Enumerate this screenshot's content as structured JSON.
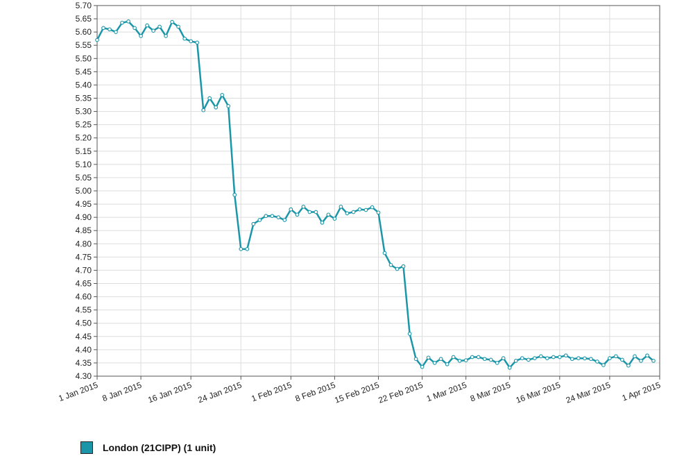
{
  "chart_data": {
    "type": "line",
    "title": "",
    "xlabel": "",
    "ylabel": "",
    "ylim": [
      4.3,
      5.7
    ],
    "xlim": [
      "2015-01-01",
      "2015-04-01"
    ],
    "yticks": [
      "4.30",
      "4.35",
      "4.40",
      "4.45",
      "4.50",
      "4.55",
      "4.60",
      "4.65",
      "4.70",
      "4.75",
      "4.80",
      "4.85",
      "4.90",
      "4.95",
      "5.00",
      "5.05",
      "5.10",
      "5.15",
      "5.20",
      "5.25",
      "5.30",
      "5.35",
      "5.40",
      "5.45",
      "5.50",
      "5.55",
      "5.60",
      "5.65",
      "5.70"
    ],
    "xticks": [
      {
        "date": "2015-01-01",
        "label": "1 Jan 2015"
      },
      {
        "date": "2015-01-08",
        "label": "8 Jan 2015"
      },
      {
        "date": "2015-01-16",
        "label": "16 Jan 2015"
      },
      {
        "date": "2015-01-24",
        "label": "24 Jan 2015"
      },
      {
        "date": "2015-02-01",
        "label": "1 Feb 2015"
      },
      {
        "date": "2015-02-08",
        "label": "8 Feb 2015"
      },
      {
        "date": "2015-02-15",
        "label": "15 Feb 2015"
      },
      {
        "date": "2015-02-22",
        "label": "22 Feb 2015"
      },
      {
        "date": "2015-03-01",
        "label": "1 Mar 2015"
      },
      {
        "date": "2015-03-08",
        "label": "8 Mar 2015"
      },
      {
        "date": "2015-03-16",
        "label": "16 Mar 2015"
      },
      {
        "date": "2015-03-24",
        "label": "24 Mar 2015"
      },
      {
        "date": "2015-04-01",
        "label": "1 Apr 2015"
      }
    ],
    "grid": true,
    "legend_position": "bottom-left",
    "series": [
      {
        "name": "London (21CIPP) (1 unit)",
        "color": "#1a96a8",
        "points": [
          [
            "2015-01-01",
            5.57
          ],
          [
            "2015-01-02",
            5.615
          ],
          [
            "2015-01-03",
            5.61
          ],
          [
            "2015-01-04",
            5.6
          ],
          [
            "2015-01-05",
            5.635
          ],
          [
            "2015-01-06",
            5.64
          ],
          [
            "2015-01-07",
            5.615
          ],
          [
            "2015-01-08",
            5.585
          ],
          [
            "2015-01-09",
            5.625
          ],
          [
            "2015-01-10",
            5.605
          ],
          [
            "2015-01-11",
            5.62
          ],
          [
            "2015-01-12",
            5.585
          ],
          [
            "2015-01-13",
            5.638
          ],
          [
            "2015-01-14",
            5.62
          ],
          [
            "2015-01-15",
            5.575
          ],
          [
            "2015-01-16",
            5.565
          ],
          [
            "2015-01-17",
            5.56
          ],
          [
            "2015-01-18",
            5.305
          ],
          [
            "2015-01-19",
            5.35
          ],
          [
            "2015-01-20",
            5.315
          ],
          [
            "2015-01-21",
            5.362
          ],
          [
            "2015-01-22",
            5.32
          ],
          [
            "2015-01-23",
            4.985
          ],
          [
            "2015-01-24",
            4.78
          ],
          [
            "2015-01-25",
            4.78
          ],
          [
            "2015-01-26",
            4.875
          ],
          [
            "2015-01-27",
            4.89
          ],
          [
            "2015-01-28",
            4.905
          ],
          [
            "2015-01-29",
            4.905
          ],
          [
            "2015-01-30",
            4.9
          ],
          [
            "2015-01-31",
            4.89
          ],
          [
            "2015-02-01",
            4.93
          ],
          [
            "2015-02-02",
            4.91
          ],
          [
            "2015-02-03",
            4.94
          ],
          [
            "2015-02-04",
            4.92
          ],
          [
            "2015-02-05",
            4.92
          ],
          [
            "2015-02-06",
            4.88
          ],
          [
            "2015-02-07",
            4.91
          ],
          [
            "2015-02-08",
            4.895
          ],
          [
            "2015-02-09",
            4.94
          ],
          [
            "2015-02-10",
            4.915
          ],
          [
            "2015-02-11",
            4.92
          ],
          [
            "2015-02-12",
            4.93
          ],
          [
            "2015-02-13",
            4.928
          ],
          [
            "2015-02-14",
            4.938
          ],
          [
            "2015-02-15",
            4.918
          ],
          [
            "2015-02-16",
            4.765
          ],
          [
            "2015-02-17",
            4.72
          ],
          [
            "2015-02-18",
            4.705
          ],
          [
            "2015-02-19",
            4.715
          ],
          [
            "2015-02-20",
            4.46
          ],
          [
            "2015-02-21",
            4.365
          ],
          [
            "2015-02-22",
            4.335
          ],
          [
            "2015-02-23",
            4.37
          ],
          [
            "2015-02-24",
            4.35
          ],
          [
            "2015-02-25",
            4.365
          ],
          [
            "2015-02-26",
            4.345
          ],
          [
            "2015-02-27",
            4.372
          ],
          [
            "2015-02-28",
            4.358
          ],
          [
            "2015-03-01",
            4.36
          ],
          [
            "2015-03-02",
            4.372
          ],
          [
            "2015-03-03",
            4.372
          ],
          [
            "2015-03-04",
            4.365
          ],
          [
            "2015-03-05",
            4.362
          ],
          [
            "2015-03-06",
            4.35
          ],
          [
            "2015-03-07",
            4.368
          ],
          [
            "2015-03-08",
            4.332
          ],
          [
            "2015-03-09",
            4.358
          ],
          [
            "2015-03-10",
            4.368
          ],
          [
            "2015-03-11",
            4.362
          ],
          [
            "2015-03-12",
            4.368
          ],
          [
            "2015-03-13",
            4.375
          ],
          [
            "2015-03-14",
            4.368
          ],
          [
            "2015-03-15",
            4.372
          ],
          [
            "2015-03-16",
            4.372
          ],
          [
            "2015-03-17",
            4.378
          ],
          [
            "2015-03-18",
            4.365
          ],
          [
            "2015-03-19",
            4.368
          ],
          [
            "2015-03-20",
            4.367
          ],
          [
            "2015-03-21",
            4.365
          ],
          [
            "2015-03-22",
            4.355
          ],
          [
            "2015-03-23",
            4.342
          ],
          [
            "2015-03-24",
            4.368
          ],
          [
            "2015-03-25",
            4.375
          ],
          [
            "2015-03-26",
            4.362
          ],
          [
            "2015-03-27",
            4.34
          ],
          [
            "2015-03-28",
            4.375
          ],
          [
            "2015-03-29",
            4.358
          ],
          [
            "2015-03-30",
            4.378
          ],
          [
            "2015-03-31",
            4.358
          ]
        ]
      }
    ]
  }
}
